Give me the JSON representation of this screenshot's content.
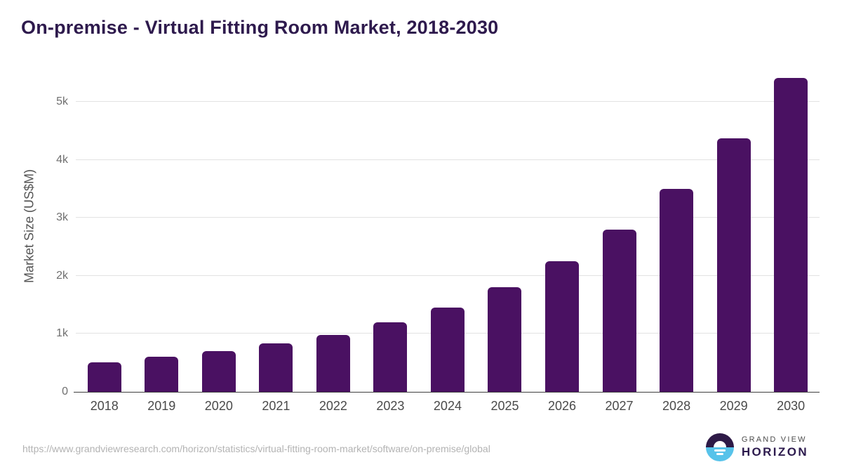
{
  "title": {
    "text": "On-premise - Virtual Fitting Room Market, 2018-2030",
    "color": "#2e1a4d"
  },
  "chart_data": {
    "type": "bar",
    "title": "On-premise - Virtual Fitting Room Market, 2018-2030",
    "categories": [
      "2018",
      "2019",
      "2020",
      "2021",
      "2022",
      "2023",
      "2024",
      "2025",
      "2026",
      "2027",
      "2028",
      "2029",
      "2030"
    ],
    "values": [
      510,
      610,
      705,
      830,
      985,
      1195,
      1450,
      1800,
      2250,
      2800,
      3500,
      4370,
      5410
    ],
    "xlabel": "",
    "ylabel": "Market Size (US$M)",
    "ylim": [
      0,
      5000
    ],
    "yticks": [
      {
        "value": 0,
        "label": "0"
      },
      {
        "value": 1000,
        "label": "1k"
      },
      {
        "value": 2000,
        "label": "2k"
      },
      {
        "value": 3000,
        "label": "3k"
      },
      {
        "value": 4000,
        "label": "4k"
      },
      {
        "value": 5000,
        "label": "5k"
      }
    ],
    "grid": "horizontal",
    "legend": "none",
    "bar_color": "#4a1162"
  },
  "footer": {
    "source_url": "https://www.grandviewresearch.com/horizon/statistics/virtual-fitting-room-market/software/on-premise/global",
    "logo": {
      "brand_top": "GRAND VIEW",
      "brand_bottom": "HORIZON",
      "icon": "horizon-sun-icon",
      "purple": "#2e1a47",
      "blue": "#58c3ea",
      "text_color": "#2d1b4e"
    }
  }
}
